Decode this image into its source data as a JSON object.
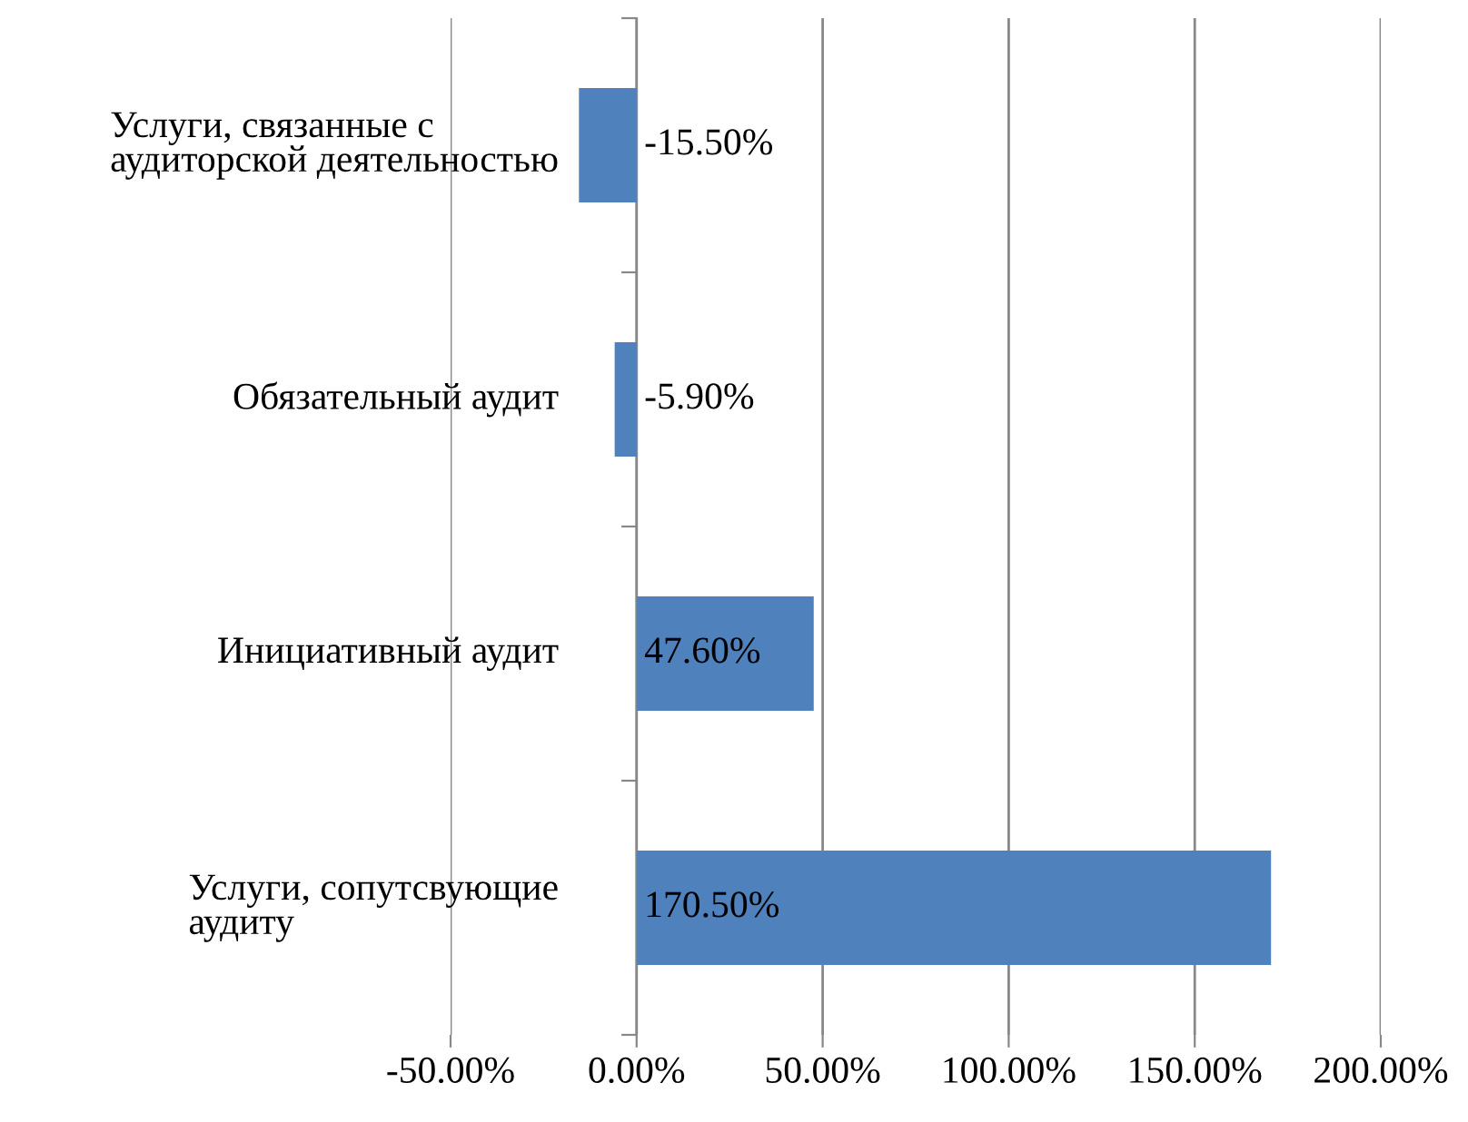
{
  "chart_data": {
    "type": "bar",
    "orientation": "horizontal",
    "categories": [
      "Услуги, связанные с\nаудиторской деятельностью",
      "Обязательный аудит",
      "Инициативный аудит",
      "Услуги, сопутсвующие\nаудиту"
    ],
    "values": [
      -15.5,
      -5.9,
      47.6,
      170.5
    ],
    "value_labels": [
      "-15.50%",
      "-5.90%",
      "47.60%",
      "170.50%"
    ],
    "color": "#4f81bd",
    "xlim": [
      -50,
      200
    ],
    "xticks": [
      {
        "value": -50,
        "label": "-50.00%"
      },
      {
        "value": 0,
        "label": "0.00%"
      },
      {
        "value": 50,
        "label": "50.00%"
      },
      {
        "value": 100,
        "label": "100.00%"
      },
      {
        "value": 150,
        "label": "150.00%"
      },
      {
        "value": 200,
        "label": "200.00%"
      }
    ],
    "grid": "x",
    "legend": false
  }
}
